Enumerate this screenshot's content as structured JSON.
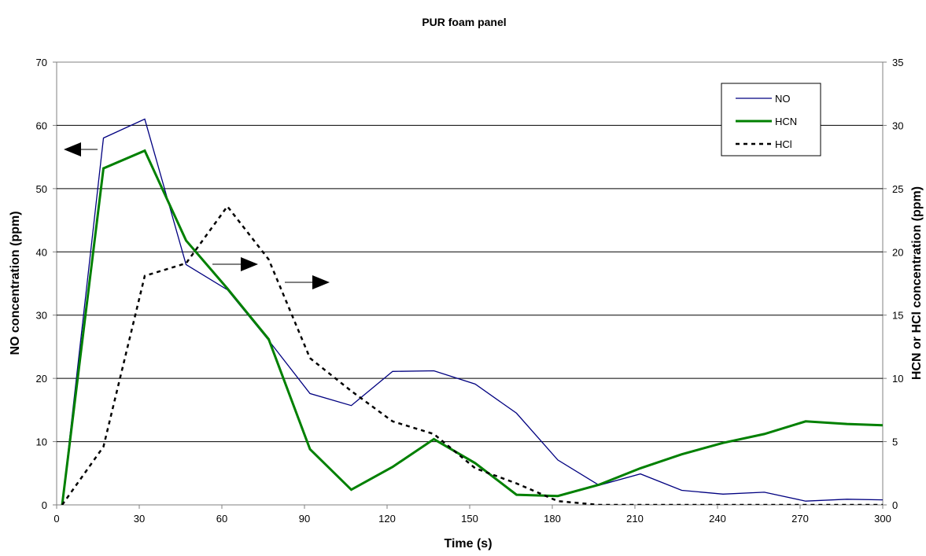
{
  "chart_data": {
    "type": "line",
    "title": "PUR foam panel",
    "xlabel": "Time (s)",
    "ylabel_left": "NO concentration (ppm)",
    "ylabel_right": "HCN or HCl concentration (ppm)",
    "xlim": [
      0,
      300
    ],
    "ylim_left": [
      0,
      70
    ],
    "ylim_right": [
      0,
      35
    ],
    "x_ticks": [
      0,
      30,
      60,
      90,
      120,
      150,
      180,
      210,
      240,
      270,
      300
    ],
    "y_left_ticks": [
      0,
      10,
      20,
      30,
      40,
      50,
      60,
      70
    ],
    "y_right_ticks": [
      0,
      5,
      10,
      15,
      20,
      25,
      30,
      35
    ],
    "grid": "horizontal",
    "legend_position": "top-right",
    "series": [
      {
        "name": "NO",
        "axis": "left",
        "color": "#000080",
        "style": "solid-thin",
        "x": [
          2,
          17,
          32,
          47,
          62,
          77,
          92,
          107,
          122,
          137,
          152,
          167,
          182,
          197,
          212,
          227,
          242,
          257,
          272,
          287,
          300
        ],
        "y": [
          0,
          58,
          61,
          38,
          34,
          26,
          17.6,
          15.7,
          21.1,
          21.2,
          19.1,
          14.5,
          7.1,
          3.1,
          4.9,
          2.3,
          1.7,
          2.0,
          0.6,
          0.9,
          0.8
        ]
      },
      {
        "name": "HCN",
        "axis": "right",
        "color": "#008000",
        "style": "solid-thick",
        "x": [
          2,
          17,
          32,
          47,
          62,
          77,
          92,
          107,
          122,
          137,
          152,
          167,
          182,
          197,
          212,
          227,
          242,
          257,
          272,
          287,
          300
        ],
        "y": [
          0,
          26.6,
          28,
          20.9,
          17.1,
          13.1,
          4.4,
          1.2,
          3.0,
          5.2,
          3.3,
          0.8,
          0.7,
          1.6,
          2.9,
          4.0,
          4.9,
          5.6,
          6.6,
          6.4,
          6.3
        ]
      },
      {
        "name": "HCl",
        "axis": "right",
        "color": "#000000",
        "style": "dashed",
        "x": [
          2,
          17,
          32,
          47,
          62,
          77,
          92,
          107,
          122,
          137,
          152,
          167,
          182,
          197,
          212,
          227,
          242,
          257,
          272,
          287,
          300
        ],
        "y": [
          0,
          4.6,
          18.1,
          19.1,
          23.6,
          19.4,
          11.6,
          9,
          6.6,
          5.6,
          2.9,
          1.7,
          0.3,
          0,
          0,
          0,
          0,
          0,
          0,
          0,
          0
        ]
      }
    ],
    "annotations": [
      {
        "type": "arrow",
        "direction": "left",
        "points_to": "left-axis",
        "near_series": "NO"
      },
      {
        "type": "arrow",
        "direction": "right",
        "points_to": "right-axis",
        "near_series": "HCl"
      },
      {
        "type": "arrow",
        "direction": "right",
        "points_to": "right-axis",
        "near_series": "HCN"
      }
    ]
  }
}
